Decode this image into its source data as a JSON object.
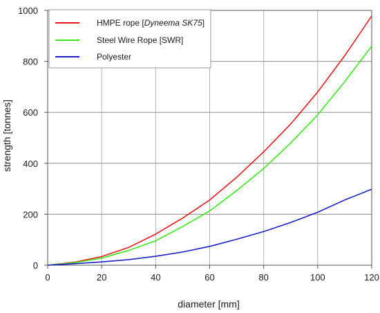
{
  "chart_data": {
    "type": "line",
    "xlabel": "diameter [mm]",
    "ylabel": "strength [tonnes]",
    "xlim": [
      0,
      120
    ],
    "ylim": [
      0,
      1000
    ],
    "x_ticks": [
      "0",
      "20",
      "40",
      "60",
      "80",
      "100",
      "120"
    ],
    "y_ticks": [
      "0",
      "200",
      "400",
      "600",
      "800",
      "1000"
    ],
    "grid": true,
    "legend_position": "top-left",
    "series": [
      {
        "name_parts": [
          "HMPE rope [",
          "Dyneema SK75",
          "]"
        ],
        "color": "#e8191c",
        "x": [
          0,
          10,
          20,
          30,
          40,
          50,
          60,
          70,
          80,
          90,
          100,
          110,
          120
        ],
        "y": [
          0,
          12,
          34,
          70,
          122,
          185,
          256,
          345,
          445,
          554,
          680,
          822,
          978
        ]
      },
      {
        "name": "Steel Wire Rope [SWR]",
        "color": "#39e81a",
        "x": [
          0,
          10,
          20,
          30,
          40,
          50,
          60,
          70,
          80,
          90,
          100,
          110,
          120
        ],
        "y": [
          0,
          10,
          28,
          58,
          96,
          152,
          213,
          293,
          380,
          480,
          590,
          720,
          860
        ]
      },
      {
        "name": "Polyester",
        "color": "#1a1fc8",
        "x": [
          0,
          10,
          20,
          30,
          40,
          50,
          60,
          70,
          80,
          90,
          100,
          110,
          120
        ],
        "y": [
          0,
          6,
          13,
          22,
          35,
          52,
          74,
          102,
          132,
          168,
          208,
          256,
          298
        ]
      }
    ]
  }
}
